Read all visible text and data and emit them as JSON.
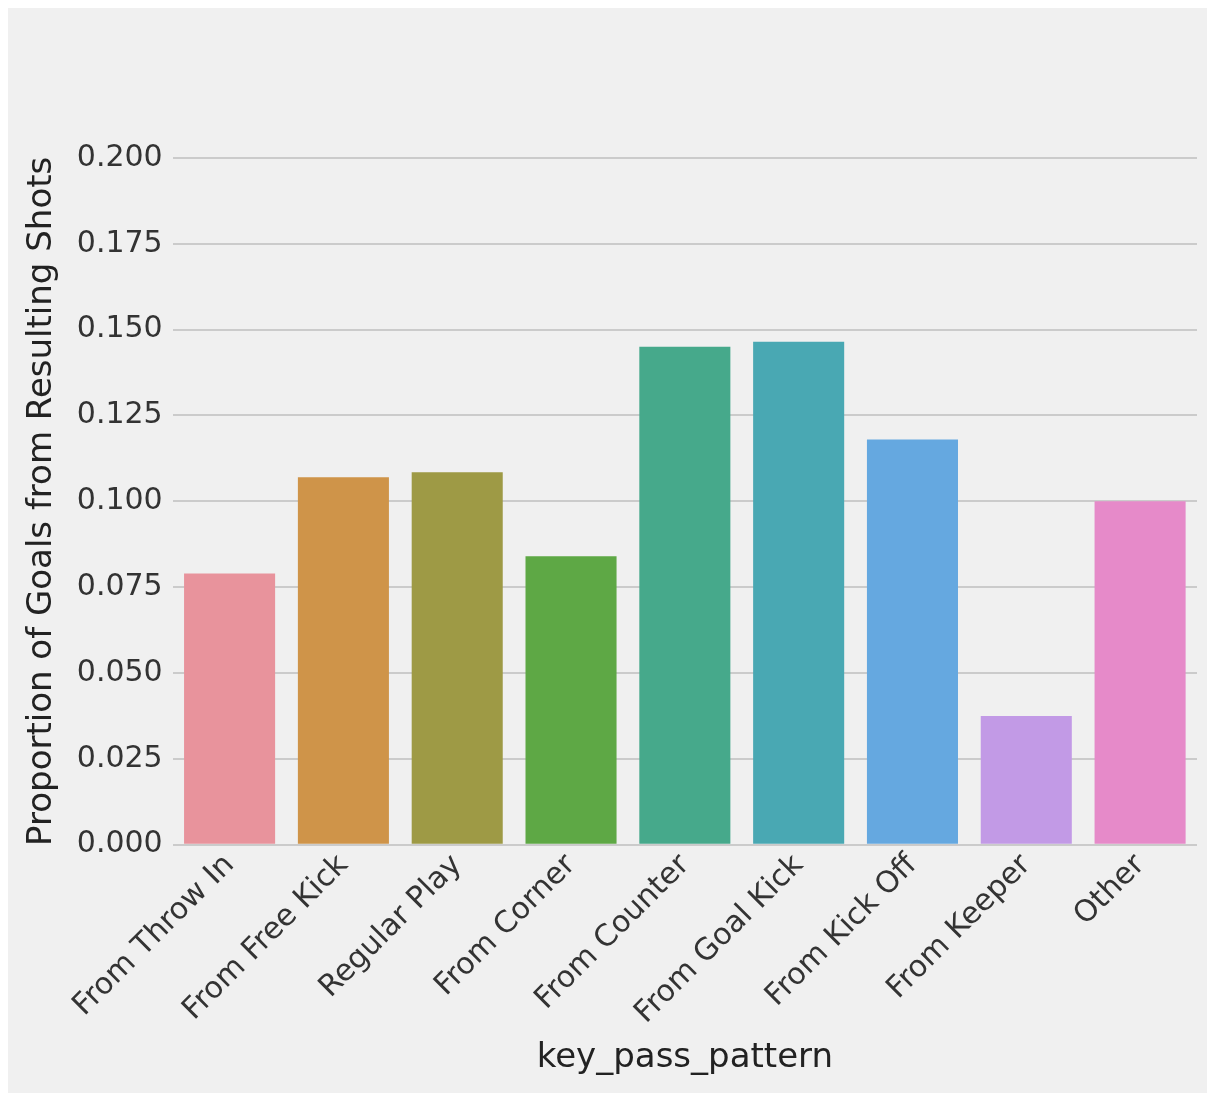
{
  "chart_data": {
    "type": "bar",
    "xlabel": "key_pass_pattern",
    "ylabel": "Proportion of Goals from Resulting Shots",
    "categories": [
      "From Throw In",
      "From Free Kick",
      "Regular Play",
      "From Corner",
      "From Counter",
      "From Goal Kick",
      "From Kick Off",
      "From Keeper",
      "Other"
    ],
    "values": [
      0.079,
      0.107,
      0.1085,
      0.084,
      0.145,
      0.1465,
      0.118,
      0.0375,
      0.1
    ],
    "colors": [
      "#e8939c",
      "#cf9449",
      "#9e9a45",
      "#5ea845",
      "#46a98b",
      "#49a8b3",
      "#65a8e0",
      "#c29ae6",
      "#e68ac9"
    ],
    "ylim": [
      0,
      0.2
    ],
    "yticks": [
      {
        "value": 0,
        "label": "0.000"
      },
      {
        "value": 0.025,
        "label": "0.025"
      },
      {
        "value": 0.05,
        "label": "0.050"
      },
      {
        "value": 0.075,
        "label": "0.075"
      },
      {
        "value": 0.1,
        "label": "0.100"
      },
      {
        "value": 0.125,
        "label": "0.125"
      },
      {
        "value": 0.15,
        "label": "0.150"
      },
      {
        "value": 0.175,
        "label": "0.175"
      },
      {
        "value": 0.2,
        "label": "0.200"
      }
    ],
    "grid": "y"
  }
}
